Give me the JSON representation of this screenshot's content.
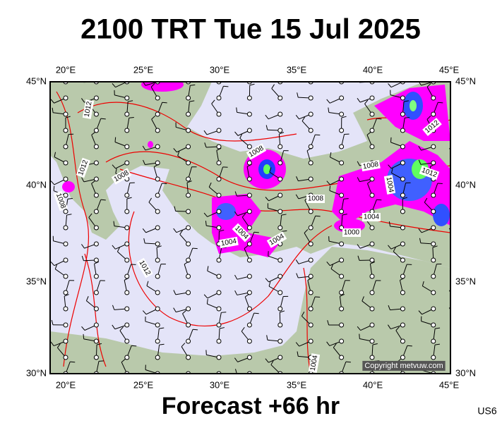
{
  "header": {
    "title": "2100 TRT Tue 15 Jul 2025"
  },
  "axes": {
    "lon_labels": [
      "20°E",
      "25°E",
      "30°E",
      "35°E",
      "40°E",
      "45°E"
    ],
    "lat_labels": [
      "45°N",
      "40°N",
      "35°N",
      "30°N"
    ]
  },
  "isobars": [
    "1012",
    "1012",
    "1008",
    "1008",
    "1008",
    "1008",
    "1004",
    "1004",
    "1004",
    "1012",
    "1012",
    "1004",
    "1000",
    "1008",
    "1012",
    "1004",
    "1004"
  ],
  "footer": {
    "caption": "Forecast +66 hr",
    "code": "US6",
    "copyright": "Copyright metvuw.com"
  }
}
